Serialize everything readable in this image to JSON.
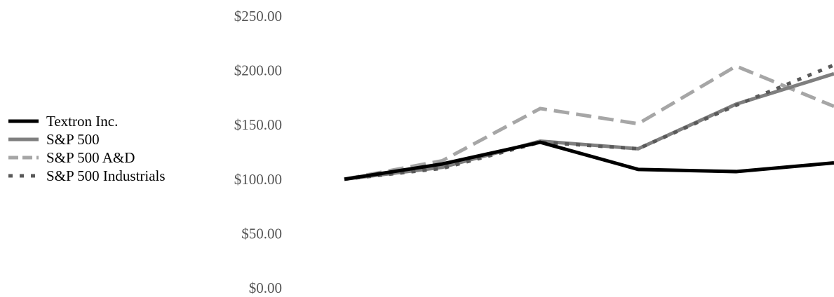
{
  "chart_data": {
    "type": "line",
    "title": "",
    "xlabel": "",
    "ylabel": "",
    "ylim": [
      0,
      250
    ],
    "y_ticks": [
      0,
      50,
      100,
      150,
      200,
      250
    ],
    "y_tick_labels": [
      "$0.00",
      "$50.00",
      "$100.00",
      "$150.00",
      "$200.00",
      "$250.00"
    ],
    "x": [
      0,
      1,
      2,
      3,
      4,
      5
    ],
    "grid": false,
    "legend_position": "left",
    "series": [
      {
        "name": "Textron Inc.",
        "values": [
          100,
          114,
          134,
          109,
          107,
          115
        ],
        "color": "#000000",
        "style": "solid"
      },
      {
        "name": "S&P 500",
        "values": [
          100,
          111,
          135,
          128,
          169,
          197
        ],
        "color": "#7f7f7f",
        "style": "solid"
      },
      {
        "name": "S&P 500 A&D",
        "values": [
          100,
          117,
          165,
          151,
          204,
          167
        ],
        "color": "#a6a6a6",
        "style": "dashed"
      },
      {
        "name": "S&P 500 Industrials",
        "values": [
          100,
          110,
          134,
          128,
          168,
          205
        ],
        "color": "#595959",
        "style": "dotted"
      }
    ]
  }
}
